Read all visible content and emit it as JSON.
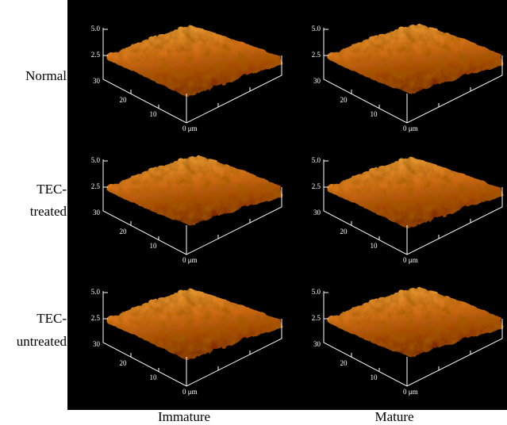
{
  "rows": [
    {
      "label": [
        "Normal"
      ]
    },
    {
      "label": [
        "TEC-",
        "treated"
      ]
    },
    {
      "label": [
        "TEC-",
        "untreated"
      ]
    }
  ],
  "columns": [
    "Immature",
    "Mature"
  ],
  "panels": [
    {
      "z_ticks": [
        "5.0",
        "2.5"
      ],
      "x_ticks": [
        "30",
        "20",
        "10",
        "0 μm"
      ]
    },
    {
      "z_ticks": [
        "5.0",
        "2.5"
      ],
      "x_ticks": [
        "30",
        "20",
        "10",
        "0 μm"
      ]
    },
    {
      "z_ticks": [
        "5.0",
        "2.5"
      ],
      "x_ticks": [
        "30",
        "20",
        "10",
        "0 μm"
      ]
    },
    {
      "z_ticks": [
        "5.0",
        "2.5"
      ],
      "x_ticks": [
        "30",
        "20",
        "10",
        "0 μm"
      ]
    },
    {
      "z_ticks": [
        "5.0",
        "2.5"
      ],
      "x_ticks": [
        "30",
        "20",
        "10",
        "0 μm"
      ]
    },
    {
      "z_ticks": [
        "5.0",
        "2.5"
      ],
      "x_ticks": [
        "30",
        "20",
        "10",
        "0 μm"
      ]
    }
  ]
}
